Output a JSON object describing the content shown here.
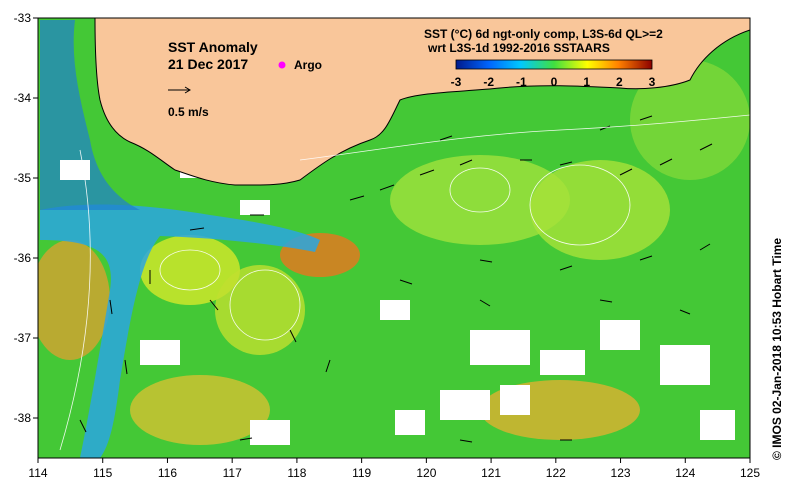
{
  "map": {
    "title_line1": "SST Anomaly",
    "title_line2": "21 Dec 2017",
    "argo_label": "Argo",
    "vector_scale_label": "0.5 m/s",
    "legend_line1": "SST (°C) 6d ngt-only comp, L3S-6d QL>=2",
    "legend_line2": "wrt L3S-1d 1992-2016 SSTAARS",
    "colorbar_ticks": [
      "-3",
      "-2",
      "-1",
      "0",
      "1",
      "2",
      "3"
    ],
    "credit": "© IMOS 02-Jan-2018 10:53 Hobart Time",
    "colors": {
      "land": "#f9c69a",
      "ocean_green": "#39c832",
      "ocean_light": "#9be03c",
      "cold": "#2aa6e0",
      "warm": "#f0a020",
      "missing": "#ffffff",
      "argo": "#ff00ff"
    }
  },
  "chart_data": {
    "type": "heatmap",
    "title": "SST Anomaly",
    "date": "21 Dec 2017",
    "x_ticks": [
      "114",
      "115",
      "116",
      "117",
      "118",
      "119",
      "120",
      "121",
      "122",
      "123",
      "124",
      "125"
    ],
    "y_ticks": [
      "-33",
      "-34",
      "-35",
      "-36",
      "-37",
      "-38"
    ],
    "xlim": [
      114,
      125
    ],
    "ylim": [
      -38.5,
      -33
    ],
    "colorbar_range": [
      -3,
      3
    ],
    "colorbar_units": "°C"
  }
}
